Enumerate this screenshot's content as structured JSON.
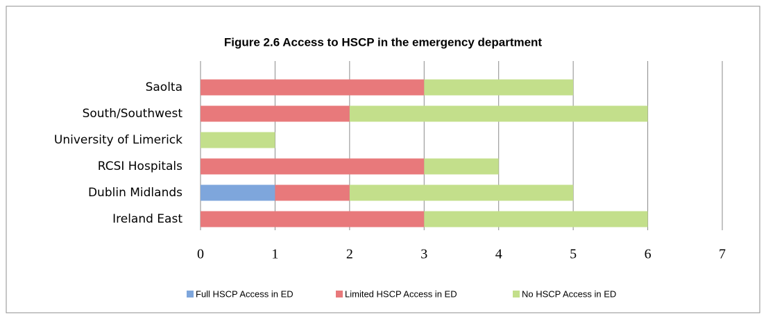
{
  "chart_data": {
    "type": "stacked_bar_horizontal",
    "title": "Figure 2.6 Access to HSCP in the emergency department",
    "categories": [
      "Saolta",
      "South/Southwest",
      "University of Limerick",
      "RCSI Hospitals",
      "Dublin Midlands",
      "Ireland East"
    ],
    "series": [
      {
        "name": "Full HSCP Access in ED",
        "color": "#7ea6dc",
        "values": [
          0,
          0,
          0,
          0,
          1,
          0
        ]
      },
      {
        "name": "Limited HSCP Access in ED",
        "color": "#e8797b",
        "values": [
          3,
          2,
          0,
          3,
          1,
          3
        ]
      },
      {
        "name": "No HSCP Access in ED",
        "color": "#c3df8b",
        "values": [
          2,
          4,
          1,
          1,
          3,
          3
        ]
      }
    ],
    "xlim": [
      0,
      7
    ],
    "xticks": [
      0,
      1,
      2,
      3,
      4,
      5,
      6,
      7
    ],
    "grid": true,
    "legend": "bottom"
  }
}
